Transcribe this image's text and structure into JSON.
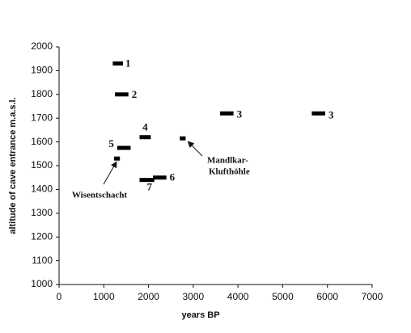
{
  "chart_data": {
    "type": "range_bar",
    "xlabel": "years BP",
    "ylabel": "altitude of cave entrance m.a.s.l.",
    "xlim": [
      0,
      7000
    ],
    "xticks": [
      0,
      1000,
      2000,
      3000,
      4000,
      5000,
      6000,
      7000
    ],
    "ylim": [
      1000,
      2000
    ],
    "yticks": [
      1000,
      1100,
      1200,
      1300,
      1400,
      1500,
      1600,
      1700,
      1800,
      1900,
      2000
    ],
    "color": "#000000",
    "bars": [
      {
        "label": "1",
        "start": 1200,
        "end": 1430,
        "y": 1930
      },
      {
        "label": "2",
        "start": 1250,
        "end": 1550,
        "y": 1800
      },
      {
        "label": "3",
        "start": 3600,
        "end": 3900,
        "y": 1720
      },
      {
        "label": "3",
        "start": 5650,
        "end": 5950,
        "y": 1720
      },
      {
        "label": "4",
        "start": 1800,
        "end": 2050,
        "y": 1620
      },
      {
        "label": "5",
        "start": 1300,
        "end": 1600,
        "y": 1575
      },
      {
        "label": "6",
        "start": 2100,
        "end": 2400,
        "y": 1450
      },
      {
        "label": "7",
        "start": 1800,
        "end": 2130,
        "y": 1440
      }
    ],
    "annotations": [
      {
        "lines": [
          "Wisentschacht"
        ],
        "start": 1230,
        "end": 1360,
        "y": 1530
      },
      {
        "lines": [
          "Mandlkar-",
          "Klufthöhle"
        ],
        "start": 2700,
        "end": 2830,
        "y": 1615
      }
    ]
  }
}
